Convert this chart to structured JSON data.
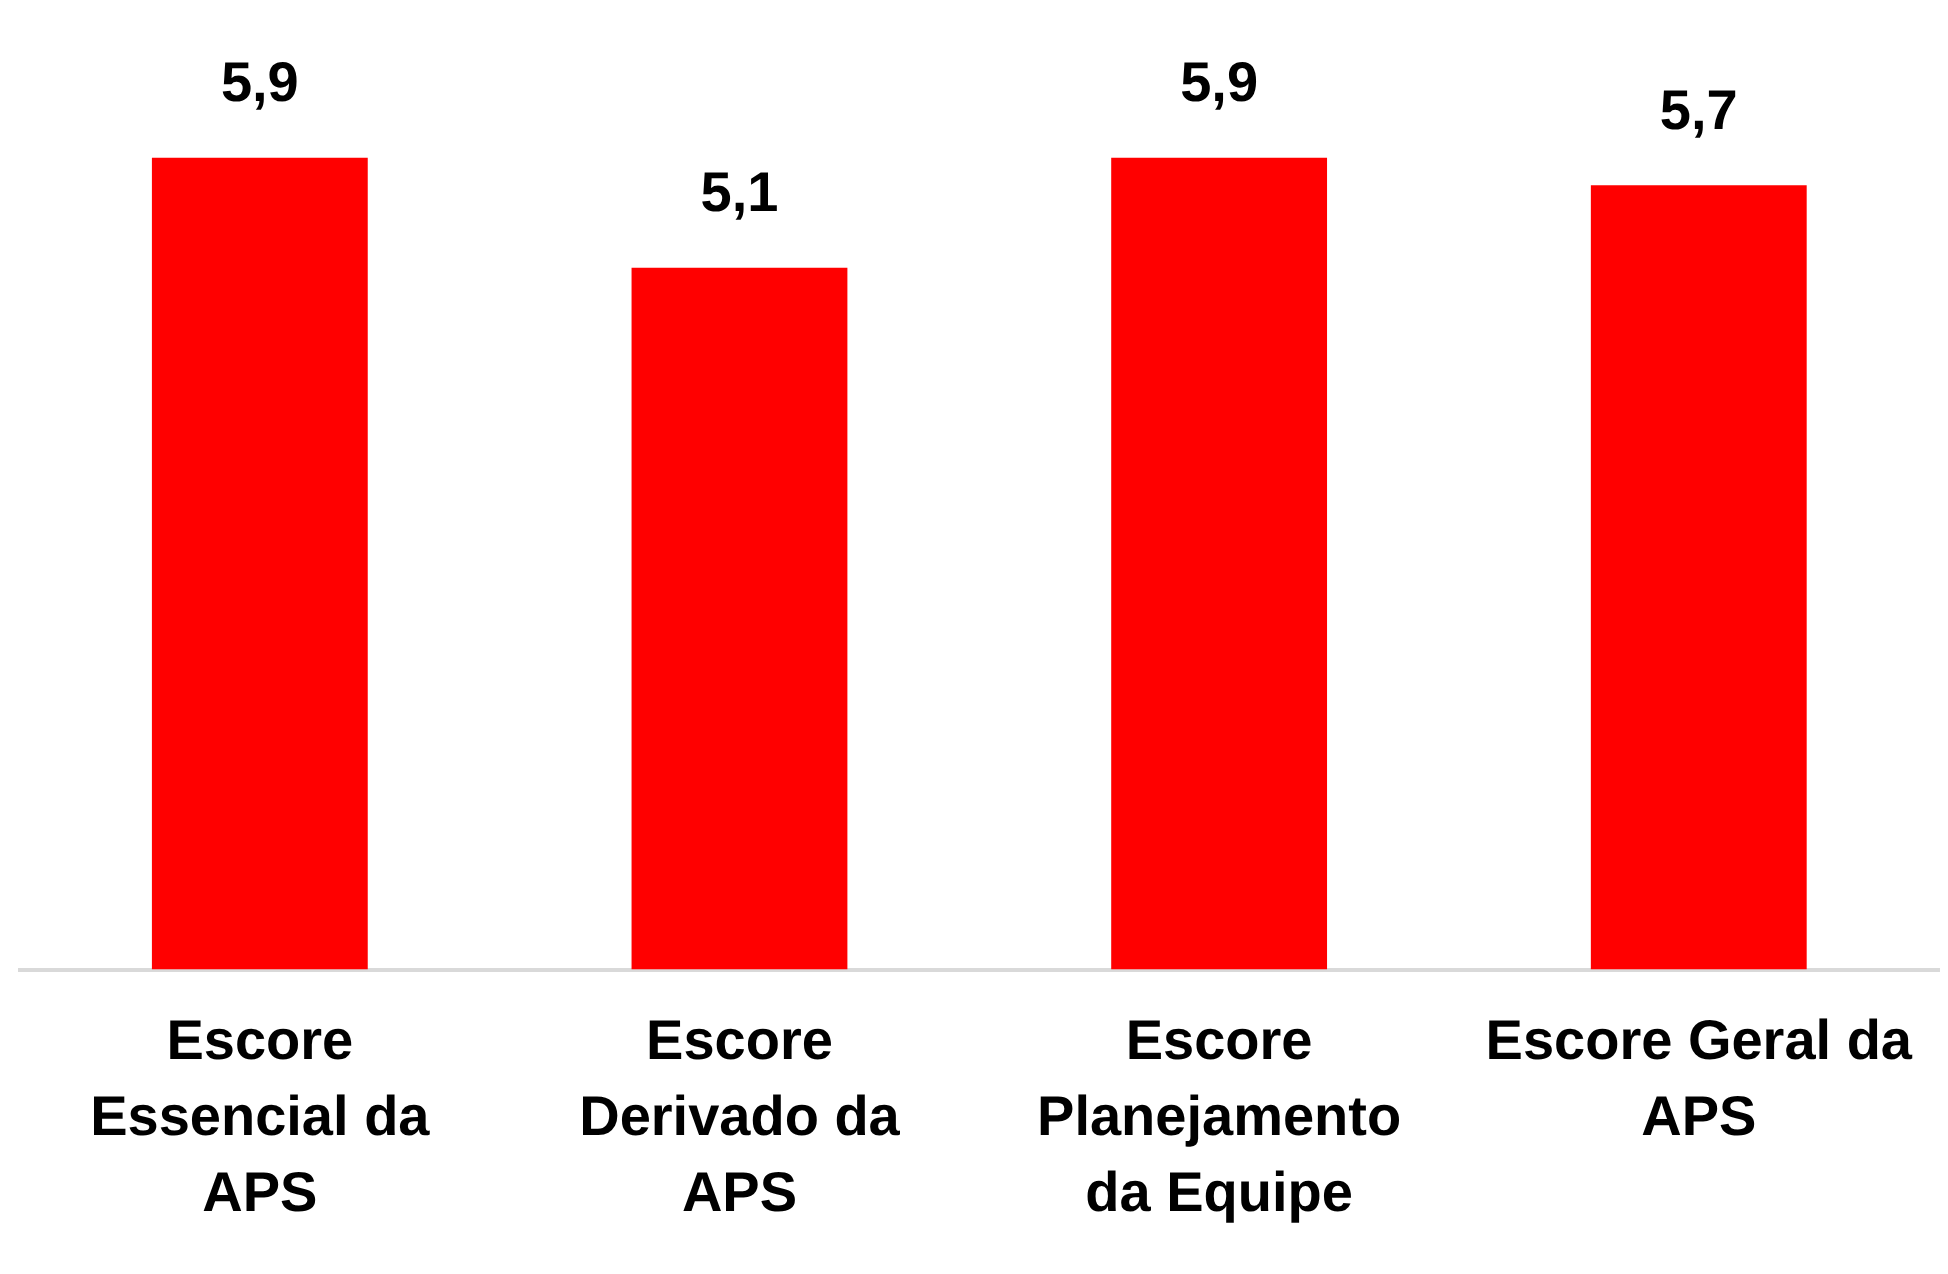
{
  "chart_data": {
    "type": "bar",
    "categories": [
      "Escore\nEssencial da\nAPS",
      "Escore\nDerivado da\nAPS",
      "Escore\nPlanejamento\nda Equipe",
      "Escore Geral da\nAPS"
    ],
    "values": [
      5.9,
      5.1,
      5.9,
      5.7
    ],
    "color": "#ff0000",
    "value_labels": [
      "5,9",
      "5,1",
      "5,9",
      "5,7"
    ],
    "tick_labels": "x",
    "grid": false,
    "legend": false
  }
}
